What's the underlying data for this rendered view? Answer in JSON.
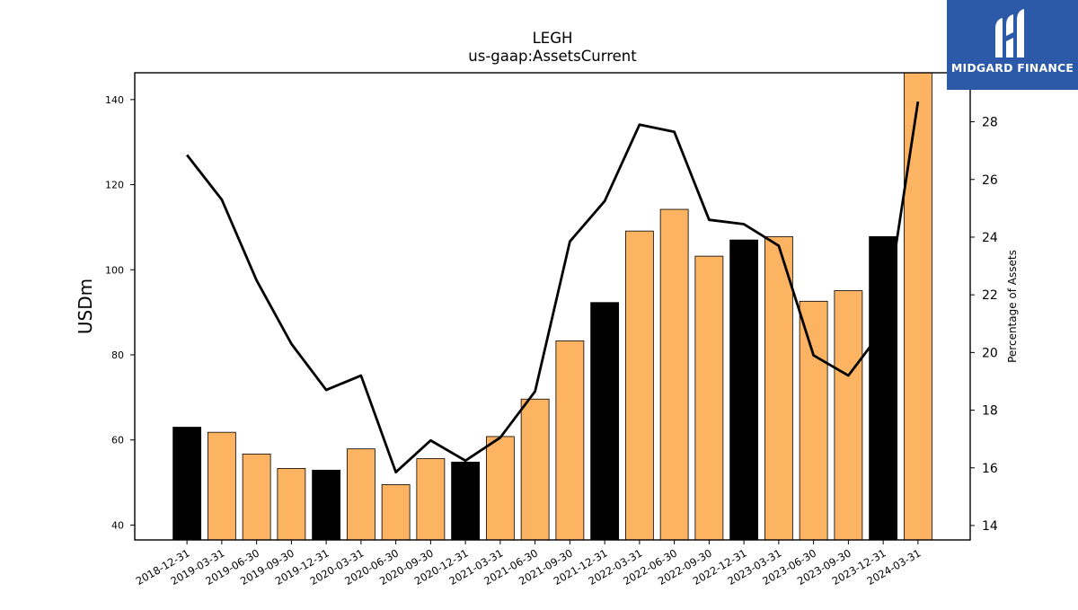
{
  "chart_data": {
    "type": "bar",
    "title": "LEGH",
    "subtitle": "us-gaap:AssetsCurrent",
    "ylabel": "USDm",
    "y2label": "Percentage of Assets",
    "categories": [
      "2018-12-31",
      "2019-03-31",
      "2019-06-30",
      "2019-09-30",
      "2019-12-31",
      "2020-03-31",
      "2020-06-30",
      "2020-09-30",
      "2020-12-31",
      "2021-03-31",
      "2021-06-30",
      "2021-09-30",
      "2021-12-31",
      "2022-03-31",
      "2022-06-30",
      "2022-09-30",
      "2022-12-31",
      "2023-03-31",
      "2023-06-30",
      "2023-09-30",
      "2023-12-31",
      "2024-03-31"
    ],
    "series": [
      {
        "values": [
          63.0,
          61.8,
          56.7,
          53.3,
          52.9,
          57.9,
          49.5,
          55.6,
          54.8,
          60.8,
          69.6,
          83.3,
          92.3,
          109.1,
          114.2,
          103.2,
          107.0,
          107.8,
          92.6,
          95.1,
          107.8,
          146.3
        ]
      },
      {
        "type": "line",
        "axis": "right",
        "values": [
          26.85,
          25.3,
          22.5,
          20.3,
          18.7,
          19.2,
          15.85,
          16.95,
          16.25,
          17.05,
          18.65,
          23.85,
          25.25,
          27.9,
          27.65,
          24.6,
          24.45,
          23.7,
          19.9,
          19.2,
          20.8,
          28.7
        ]
      }
    ],
    "ylim": [
      36.5,
      146.3
    ],
    "y2lim": [
      13.5,
      29.7
    ],
    "yticks": [
      40,
      60,
      80,
      100,
      120,
      140
    ],
    "y2ticks": [
      14,
      16,
      18,
      20,
      22,
      24,
      26,
      28
    ],
    "colors": {
      "annual_bar": "#000000",
      "quarter_bar": "#fdb462",
      "line": "#000000"
    },
    "annual_bar_months": "12-31",
    "grid": false
  },
  "logo": {
    "text": "MIDGARD FINANCE",
    "icon": "midgard-logo-icon"
  }
}
